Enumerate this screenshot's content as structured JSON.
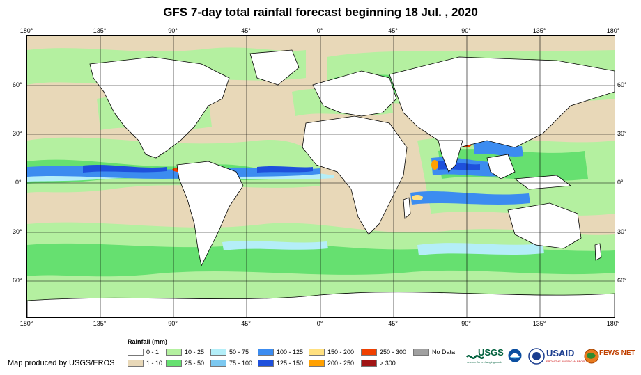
{
  "title": "GFS 7-day total rainfall forecast beginning 18 Jul. , 2020",
  "map": {
    "lon_labels": [
      "180°",
      "135°",
      "90°",
      "45°",
      "0°",
      "45°",
      "90°",
      "135°",
      "180°"
    ],
    "lat_labels": [
      "60°",
      "30°",
      "0°",
      "30°",
      "60°"
    ]
  },
  "legend": {
    "title": "Rainfall (mm)",
    "items": [
      {
        "label": "0 - 1",
        "color": "#ffffff"
      },
      {
        "label": "1 - 10",
        "color": "#e8d8b8"
      },
      {
        "label": "10 - 25",
        "color": "#b4f0a0"
      },
      {
        "label": "25 - 50",
        "color": "#66e070"
      },
      {
        "label": "50 - 75",
        "color": "#b4eef8"
      },
      {
        "label": "75 - 100",
        "color": "#7cc8f0"
      },
      {
        "label": "100 - 125",
        "color": "#3c8cf0"
      },
      {
        "label": "125 - 150",
        "color": "#1e50dc"
      },
      {
        "label": "150 - 200",
        "color": "#ffe080"
      },
      {
        "label": "200 - 250",
        "color": "#ffa000"
      },
      {
        "label": "250 - 300",
        "color": "#f04000"
      },
      {
        "label": "> 300",
        "color": "#a01414"
      },
      {
        "label": "No Data",
        "color": "#a0a0a0"
      }
    ]
  },
  "credit": "Map produced by USGS/EROS",
  "logos": {
    "usgs": "USGS",
    "usgs_tagline": "science for a changing world",
    "usaid": "USAID",
    "usaid_tagline": "FROM THE AMERICAN PEOPLE",
    "fewsnet": "FEWS NET"
  }
}
